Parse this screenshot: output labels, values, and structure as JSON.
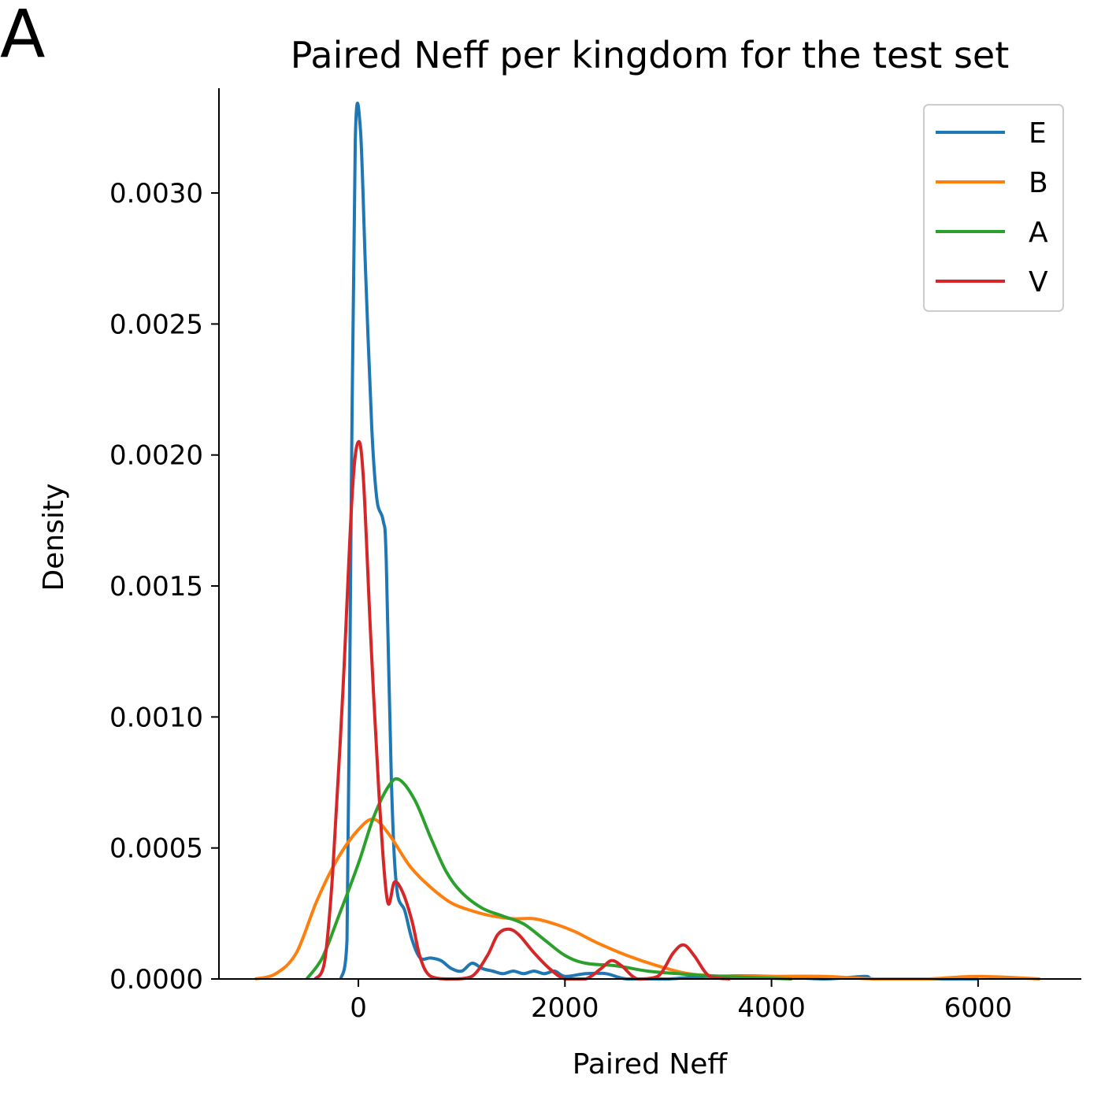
{
  "panel_label": "A",
  "chart_data": {
    "type": "line",
    "title": "Paired Neff per kingdom for the test set",
    "xlabel": "Paired Neff",
    "ylabel": "Density",
    "xlim": [
      -1350,
      7000
    ],
    "ylim": [
      0,
      0.0034
    ],
    "xticks": [
      0,
      2000,
      4000,
      6000
    ],
    "xtick_labels": [
      "0",
      "2000",
      "4000",
      "6000"
    ],
    "yticks": [
      0,
      0.0005,
      0.001,
      0.0015,
      0.002,
      0.0025,
      0.003
    ],
    "ytick_labels": [
      "0.0000",
      "0.0005",
      "0.0010",
      "0.0015",
      "0.0020",
      "0.0025",
      "0.0030"
    ],
    "grid": false,
    "legend_position": "top-right",
    "series": [
      {
        "name": "E",
        "color": "#1f77b4",
        "points": [
          [
            -170,
            0.0
          ],
          [
            -110,
            0.00015
          ],
          [
            -70,
            0.0018
          ],
          [
            -30,
            0.0032
          ],
          [
            20,
            0.00324
          ],
          [
            70,
            0.0027
          ],
          [
            130,
            0.0021
          ],
          [
            180,
            0.00183
          ],
          [
            240,
            0.00175
          ],
          [
            270,
            0.0016
          ],
          [
            320,
            0.00075
          ],
          [
            370,
            0.00035
          ],
          [
            450,
            0.00026
          ],
          [
            520,
            0.00015
          ],
          [
            600,
            8e-05
          ],
          [
            700,
            8e-05
          ],
          [
            800,
            7e-05
          ],
          [
            900,
            4e-05
          ],
          [
            1000,
            3e-05
          ],
          [
            1100,
            6e-05
          ],
          [
            1200,
            4e-05
          ],
          [
            1300,
            3e-05
          ],
          [
            1400,
            2e-05
          ],
          [
            1500,
            3e-05
          ],
          [
            1600,
            2e-05
          ],
          [
            1700,
            3e-05
          ],
          [
            1800,
            2e-05
          ],
          [
            1900,
            3e-05
          ],
          [
            2000,
            1e-05
          ],
          [
            2200,
            2e-05
          ],
          [
            2400,
            2e-05
          ],
          [
            2600,
            0.0
          ],
          [
            3000,
            0.0
          ],
          [
            3400,
            1e-05
          ],
          [
            4000,
            1e-05
          ],
          [
            4500,
            0.0
          ],
          [
            4900,
            1e-05
          ],
          [
            5000,
            0.0
          ],
          [
            5500,
            0.0
          ],
          [
            6000,
            0.0
          ]
        ]
      },
      {
        "name": "B",
        "color": "#ff7f0e",
        "points": [
          [
            -1000,
            0.0
          ],
          [
            -800,
            2e-05
          ],
          [
            -600,
            0.0001
          ],
          [
            -400,
            0.0003
          ],
          [
            -200,
            0.00046
          ],
          [
            0,
            0.00057
          ],
          [
            150,
            0.00061
          ],
          [
            300,
            0.00055
          ],
          [
            500,
            0.00043
          ],
          [
            700,
            0.00035
          ],
          [
            900,
            0.00029
          ],
          [
            1100,
            0.00026
          ],
          [
            1300,
            0.00024
          ],
          [
            1500,
            0.00023
          ],
          [
            1700,
            0.00023
          ],
          [
            1900,
            0.00021
          ],
          [
            2100,
            0.00018
          ],
          [
            2300,
            0.00014
          ],
          [
            2600,
            9e-05
          ],
          [
            2900,
            5e-05
          ],
          [
            3200,
            2e-05
          ],
          [
            3600,
            1e-05
          ],
          [
            4000,
            1e-05
          ],
          [
            4500,
            1e-05
          ],
          [
            5000,
            0.0
          ],
          [
            5500,
            0.0
          ],
          [
            6000,
            1e-05
          ],
          [
            6600,
            0.0
          ]
        ]
      },
      {
        "name": "A",
        "color": "#2ca02c",
        "points": [
          [
            -500,
            0.0
          ],
          [
            -350,
            8e-05
          ],
          [
            -200,
            0.00023
          ],
          [
            0,
            0.00044
          ],
          [
            150,
            0.00062
          ],
          [
            300,
            0.00074
          ],
          [
            400,
            0.00076
          ],
          [
            550,
            0.00068
          ],
          [
            700,
            0.00054
          ],
          [
            850,
            0.00041
          ],
          [
            1000,
            0.00033
          ],
          [
            1200,
            0.00027
          ],
          [
            1400,
            0.00024
          ],
          [
            1600,
            0.00021
          ],
          [
            1800,
            0.00015
          ],
          [
            2000,
            9e-05
          ],
          [
            2200,
            6e-05
          ],
          [
            2500,
            5e-05
          ],
          [
            2800,
            3e-05
          ],
          [
            3100,
            2e-05
          ],
          [
            3500,
            1e-05
          ],
          [
            4200,
            0.0
          ]
        ]
      },
      {
        "name": "V",
        "color": "#d62728",
        "points": [
          [
            -420,
            0.0
          ],
          [
            -330,
            6e-05
          ],
          [
            -250,
            0.0004
          ],
          [
            -150,
            0.0011
          ],
          [
            -60,
            0.00185
          ],
          [
            0,
            0.00205
          ],
          [
            50,
            0.0019
          ],
          [
            120,
            0.0013
          ],
          [
            200,
            0.0007
          ],
          [
            280,
            0.0003
          ],
          [
            350,
            0.00037
          ],
          [
            430,
            0.00033
          ],
          [
            520,
            0.00022
          ],
          [
            600,
            8e-05
          ],
          [
            700,
            1e-05
          ],
          [
            900,
            0.0
          ],
          [
            1100,
            1e-05
          ],
          [
            1250,
            9e-05
          ],
          [
            1350,
            0.00017
          ],
          [
            1450,
            0.00019
          ],
          [
            1550,
            0.00017
          ],
          [
            1700,
            0.0001
          ],
          [
            1850,
            4e-05
          ],
          [
            2000,
            0.0
          ],
          [
            2200,
            0.0
          ],
          [
            2350,
            4e-05
          ],
          [
            2450,
            7e-05
          ],
          [
            2550,
            5e-05
          ],
          [
            2700,
            0.0
          ],
          [
            2900,
            1e-05
          ],
          [
            3050,
            0.0001
          ],
          [
            3150,
            0.00013
          ],
          [
            3250,
            9e-05
          ],
          [
            3400,
            1e-05
          ],
          [
            3600,
            0.0
          ]
        ]
      }
    ]
  }
}
